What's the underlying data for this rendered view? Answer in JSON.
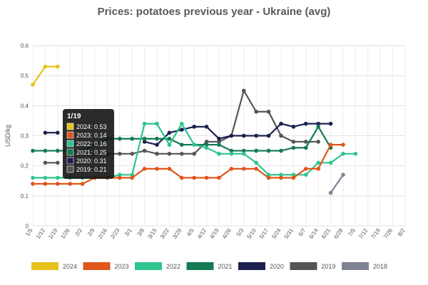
{
  "chart_data": {
    "type": "line",
    "title": "Prices: potatoes previous year - Ukraine (avg)",
    "ylabel": "USD/kg",
    "xlabel": "",
    "ylim": [
      0,
      0.6
    ],
    "yticks": [
      "0",
      "0.1",
      "0.2",
      "0.3",
      "0.4",
      "0.5",
      "0.6"
    ],
    "categories": [
      "1/5",
      "1/12",
      "1/19",
      "1/26",
      "2/2",
      "2/9",
      "2/16",
      "2/23",
      "3/1",
      "3/8",
      "3/15",
      "3/22",
      "3/29",
      "4/5",
      "4/12",
      "4/19",
      "4/26",
      "5/3",
      "5/10",
      "5/17",
      "5/24",
      "5/31",
      "6/7",
      "6/14",
      "6/21",
      "6/28",
      "7/5",
      "7/12",
      "7/19",
      "7/26",
      "8/2"
    ],
    "grid": true,
    "legend_position": "bottom",
    "series": [
      {
        "name": "2024",
        "color": "#e6c21a",
        "values": [
          0.47,
          0.53,
          0.53,
          null,
          null,
          null,
          null,
          null,
          null,
          null,
          null,
          null,
          null,
          null,
          null,
          null,
          null,
          null,
          null,
          null,
          null,
          null,
          null,
          null,
          null,
          null,
          null,
          null,
          null,
          null,
          null
        ]
      },
      {
        "name": "2023",
        "color": "#e0561b",
        "values": [
          0.14,
          0.14,
          0.14,
          0.14,
          0.14,
          0.16,
          0.16,
          0.16,
          0.16,
          0.19,
          0.19,
          0.19,
          0.16,
          0.16,
          0.16,
          0.16,
          0.19,
          0.19,
          0.19,
          0.16,
          0.16,
          0.16,
          0.19,
          0.19,
          0.27,
          0.27,
          null,
          null,
          null,
          null,
          null
        ]
      },
      {
        "name": "2022",
        "color": "#2ec48e",
        "values": [
          0.16,
          0.16,
          0.16,
          0.16,
          0.16,
          0.16,
          0.16,
          0.17,
          0.17,
          0.34,
          0.34,
          0.27,
          0.34,
          0.27,
          0.26,
          0.24,
          0.24,
          0.24,
          0.21,
          0.17,
          0.17,
          0.17,
          0.17,
          0.21,
          0.21,
          0.24,
          0.24,
          null,
          null,
          null,
          null
        ]
      },
      {
        "name": "2021",
        "color": "#137a52",
        "values": [
          0.25,
          0.25,
          0.25,
          0.25,
          0.25,
          0.27,
          0.29,
          0.29,
          0.29,
          0.29,
          0.29,
          0.29,
          0.27,
          0.27,
          0.27,
          0.27,
          0.25,
          0.25,
          0.25,
          0.25,
          0.25,
          0.26,
          0.26,
          0.33,
          0.26,
          null,
          null,
          null,
          null,
          null,
          null
        ]
      },
      {
        "name": "2020",
        "color": "#1c2050",
        "values": [
          null,
          0.31,
          0.31,
          null,
          null,
          null,
          null,
          null,
          null,
          0.28,
          0.27,
          0.31,
          0.32,
          0.33,
          0.33,
          0.29,
          0.3,
          0.3,
          0.3,
          0.3,
          0.34,
          0.33,
          0.34,
          0.34,
          0.34,
          null,
          null,
          null,
          null,
          null,
          null
        ]
      },
      {
        "name": "2019",
        "color": "#555555",
        "values": [
          null,
          0.21,
          0.21,
          null,
          null,
          0.24,
          0.24,
          0.24,
          0.24,
          0.25,
          0.24,
          0.24,
          0.24,
          0.24,
          0.28,
          0.28,
          0.3,
          0.45,
          0.38,
          0.38,
          0.3,
          0.28,
          0.28,
          0.28,
          null,
          null,
          null,
          null,
          null,
          null,
          null
        ]
      },
      {
        "name": "2018",
        "color": "#7e8394",
        "values": [
          null,
          null,
          null,
          null,
          null,
          null,
          null,
          null,
          null,
          null,
          null,
          null,
          null,
          null,
          null,
          null,
          null,
          null,
          null,
          null,
          null,
          null,
          null,
          null,
          0.11,
          0.17,
          null,
          null,
          null,
          null,
          null
        ]
      }
    ],
    "tooltip": {
      "title": "1/19",
      "rows": [
        {
          "color": "#e6c21a",
          "text": "2024: 0.53"
        },
        {
          "color": "#e0561b",
          "text": "2023: 0.14"
        },
        {
          "color": "#2ec48e",
          "text": "2022: 0.16"
        },
        {
          "color": "#137a52",
          "text": "2021: 0.25"
        },
        {
          "color": "#1c2050",
          "text": "2020: 0.31"
        },
        {
          "color": "#555555",
          "text": "2019: 0.21"
        }
      ]
    }
  }
}
